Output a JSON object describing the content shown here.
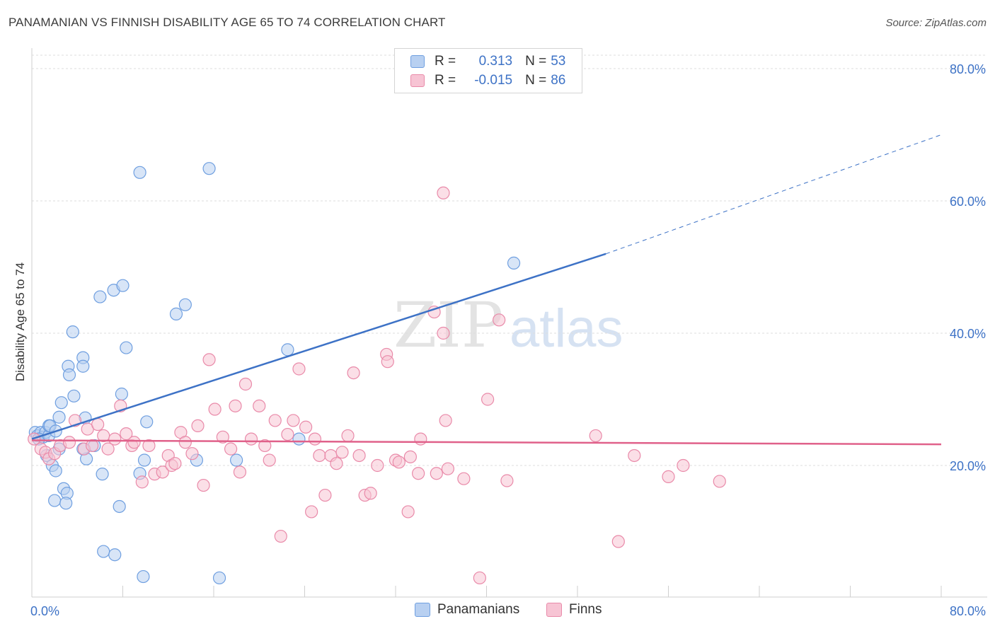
{
  "title": "PANAMANIAN VS FINNISH DISABILITY AGE 65 TO 74 CORRELATION CHART",
  "source": "Source: ZipAtlas.com",
  "watermark": {
    "zip": "ZIP",
    "atlas": "atlas"
  },
  "legend": {
    "rows": [
      {
        "r_label": "R =",
        "r_value": "0.313",
        "n_label": "N =",
        "n_value": "53",
        "fill": "#b8d0f1",
        "stroke": "#6f9fe0"
      },
      {
        "r_label": "R =",
        "r_value": "-0.015",
        "n_label": "N =",
        "n_value": "86",
        "fill": "#f7c4d4",
        "stroke": "#e98aa9"
      }
    ]
  },
  "bottom_legend": [
    {
      "label": "Panamanians",
      "fill": "#b8d0f1",
      "stroke": "#6f9fe0"
    },
    {
      "label": "Finns",
      "fill": "#f7c4d4",
      "stroke": "#e98aa9"
    }
  ],
  "chart_data": {
    "type": "scatter",
    "title": "PANAMANIAN VS FINNISH DISABILITY AGE 65 TO 74 CORRELATION CHART",
    "xlabel": "",
    "ylabel": "Disability Age 65 to 74",
    "xlim": [
      0,
      80
    ],
    "ylim": [
      0,
      82
    ],
    "x_tick_labels": [
      "0.0%",
      "80.0%"
    ],
    "y_ticks": [
      20,
      40,
      60,
      80
    ],
    "y_tick_labels": [
      "20.0%",
      "40.0%",
      "60.0%",
      "80.0%"
    ],
    "grid": true,
    "series": [
      {
        "name": "Panamanians",
        "color": "#3d72c6",
        "fill": "#b8d0f1",
        "stroke": "#6f9fe0",
        "trend": {
          "x0": 0,
          "y0": 24.0,
          "x1": 50.5,
          "y1": 52.0,
          "dash_to_x": 80,
          "dash_to_y": 70.0
        },
        "points": [
          [
            0.3,
            25
          ],
          [
            0.5,
            24.5
          ],
          [
            0.8,
            25
          ],
          [
            1.0,
            24.3
          ],
          [
            1.2,
            25
          ],
          [
            0.6,
            24
          ],
          [
            1.5,
            24.5
          ],
          [
            1.5,
            26
          ],
          [
            1.6,
            26
          ],
          [
            2.1,
            25.2
          ],
          [
            2.4,
            22.5
          ],
          [
            1.3,
            21.5
          ],
          [
            1.8,
            20
          ],
          [
            2.1,
            19.2
          ],
          [
            2.8,
            16.5
          ],
          [
            3.1,
            15.8
          ],
          [
            2.0,
            14.7
          ],
          [
            3.0,
            14.3
          ],
          [
            2.4,
            27.3
          ],
          [
            2.6,
            29.5
          ],
          [
            3.2,
            35
          ],
          [
            3.3,
            33.7
          ],
          [
            3.7,
            30.5
          ],
          [
            3.6,
            40.2
          ],
          [
            4.5,
            36.3
          ],
          [
            4.5,
            35
          ],
          [
            4.7,
            27.2
          ],
          [
            4.8,
            21
          ],
          [
            4.5,
            22.5
          ],
          [
            5.5,
            23
          ],
          [
            6.0,
            45.5
          ],
          [
            7.2,
            46.5
          ],
          [
            8.0,
            47.2
          ],
          [
            7.9,
            30.8
          ],
          [
            8.3,
            37.8
          ],
          [
            6.2,
            18.7
          ],
          [
            7.7,
            13.8
          ],
          [
            6.3,
            7
          ],
          [
            7.3,
            6.5
          ],
          [
            9.5,
            64.3
          ],
          [
            9.5,
            18.8
          ],
          [
            9.9,
            20.8
          ],
          [
            10.1,
            26.6
          ],
          [
            9.8,
            3.2
          ],
          [
            12.7,
            42.9
          ],
          [
            13.5,
            44.3
          ],
          [
            14.5,
            20.8
          ],
          [
            15.6,
            64.9
          ],
          [
            16.5,
            3
          ],
          [
            18.0,
            20.8
          ],
          [
            22.5,
            37.5
          ],
          [
            23.5,
            24
          ],
          [
            42.4,
            50.6
          ]
        ]
      },
      {
        "name": "Finns",
        "color": "#e0618a",
        "fill": "#f7c4d4",
        "stroke": "#e98aa9",
        "trend": {
          "x0": 0,
          "y0": 23.8,
          "x1": 80,
          "y1": 23.2
        },
        "points": [
          [
            0.2,
            24
          ],
          [
            0.8,
            22.5
          ],
          [
            1.2,
            22
          ],
          [
            1.5,
            21
          ],
          [
            2.0,
            21.8
          ],
          [
            2.5,
            23
          ],
          [
            3.3,
            23.5
          ],
          [
            3.8,
            26.8
          ],
          [
            4.6,
            22.5
          ],
          [
            4.9,
            25.5
          ],
          [
            5.3,
            23
          ],
          [
            5.8,
            26.2
          ],
          [
            6.3,
            24.5
          ],
          [
            6.7,
            22.5
          ],
          [
            7.3,
            24
          ],
          [
            7.8,
            29
          ],
          [
            8.3,
            24.8
          ],
          [
            8.8,
            23
          ],
          [
            9.0,
            23.5
          ],
          [
            9.7,
            17.5
          ],
          [
            10.3,
            23
          ],
          [
            10.8,
            18.7
          ],
          [
            11.5,
            19
          ],
          [
            12.0,
            21.5
          ],
          [
            12.3,
            20
          ],
          [
            12.6,
            20.3
          ],
          [
            13.1,
            25
          ],
          [
            13.5,
            23.5
          ],
          [
            14.1,
            21.8
          ],
          [
            14.6,
            26
          ],
          [
            15.1,
            17
          ],
          [
            15.6,
            36
          ],
          [
            16.1,
            28.5
          ],
          [
            16.8,
            24.3
          ],
          [
            17.5,
            22.5
          ],
          [
            17.9,
            29
          ],
          [
            18.3,
            19
          ],
          [
            18.8,
            32.3
          ],
          [
            19.3,
            24
          ],
          [
            20.0,
            29
          ],
          [
            20.5,
            23
          ],
          [
            20.9,
            20.8
          ],
          [
            21.4,
            26.8
          ],
          [
            21.9,
            9.3
          ],
          [
            22.5,
            24.7
          ],
          [
            23.0,
            26.8
          ],
          [
            23.5,
            34.6
          ],
          [
            24.1,
            25.8
          ],
          [
            24.6,
            13
          ],
          [
            24.9,
            24
          ],
          [
            25.3,
            21.5
          ],
          [
            25.8,
            15.5
          ],
          [
            26.3,
            21.5
          ],
          [
            26.8,
            20.3
          ],
          [
            27.3,
            22
          ],
          [
            27.8,
            24.5
          ],
          [
            28.3,
            34
          ],
          [
            28.8,
            21.5
          ],
          [
            29.3,
            15.5
          ],
          [
            29.8,
            15.8
          ],
          [
            30.4,
            20
          ],
          [
            31.2,
            36.8
          ],
          [
            31.3,
            35.7
          ],
          [
            32.0,
            20.8
          ],
          [
            32.3,
            20.5
          ],
          [
            33.1,
            13
          ],
          [
            33.3,
            21.3
          ],
          [
            34.0,
            18.8
          ],
          [
            34.2,
            24
          ],
          [
            35.4,
            43.2
          ],
          [
            35.6,
            18.8
          ],
          [
            36.2,
            40
          ],
          [
            36.4,
            26.8
          ],
          [
            36.6,
            19.5
          ],
          [
            38.0,
            18
          ],
          [
            39.4,
            3
          ],
          [
            40.1,
            30
          ],
          [
            41.1,
            42
          ],
          [
            41.8,
            17.7
          ],
          [
            49.6,
            24.5
          ],
          [
            51.6,
            8.5
          ],
          [
            53.0,
            21.5
          ],
          [
            56.0,
            18.3
          ],
          [
            57.3,
            20
          ],
          [
            60.5,
            17.6
          ],
          [
            36.2,
            61.2
          ]
        ]
      }
    ]
  }
}
